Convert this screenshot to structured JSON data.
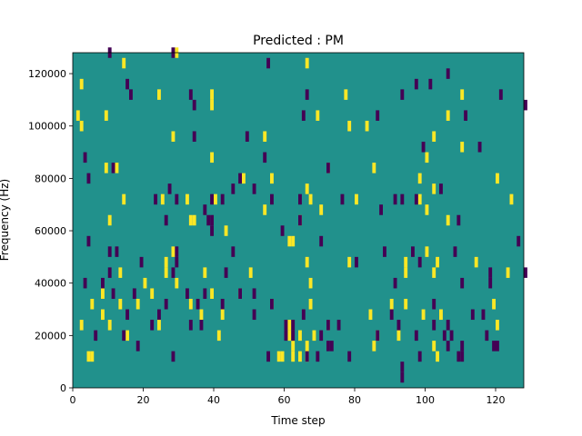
{
  "chart_data": {
    "type": "heatmap",
    "title": "Predicted : PM",
    "xlabel": "Time step",
    "ylabel": "Frequency (Hz)",
    "xlim": [
      0,
      128
    ],
    "ylim": [
      0,
      128000
    ],
    "x_ticks": [
      0,
      20,
      40,
      60,
      80,
      100,
      120
    ],
    "y_ticks": [
      0,
      20000,
      40000,
      60000,
      80000,
      100000,
      120000
    ],
    "y_tick_labels": [
      "0",
      "20000",
      "40000",
      "60000",
      "80000",
      "100000",
      "120000"
    ],
    "grid": false,
    "colormap": "viridis",
    "colors": {
      "background": "#21918c",
      "high": "#fde725",
      "low": "#440154"
    },
    "cell_width_x": 1,
    "cell_height_hz": 4000,
    "high_cells": [
      [
        29,
        126000
      ],
      [
        14,
        122000
      ],
      [
        66,
        122000
      ],
      [
        2,
        114000
      ],
      [
        24,
        110000
      ],
      [
        39,
        110000
      ],
      [
        77,
        110000
      ],
      [
        110,
        110000
      ],
      [
        39,
        106000
      ],
      [
        1,
        102000
      ],
      [
        9,
        102000
      ],
      [
        69,
        102000
      ],
      [
        106,
        102000
      ],
      [
        2,
        98000
      ],
      [
        78,
        98000
      ],
      [
        83,
        98000
      ],
      [
        28,
        94000
      ],
      [
        54,
        94000
      ],
      [
        102,
        94000
      ],
      [
        110,
        90000
      ],
      [
        39,
        86000
      ],
      [
        100,
        86000
      ],
      [
        9,
        82000
      ],
      [
        12,
        82000
      ],
      [
        72,
        82000
      ],
      [
        85,
        82000
      ],
      [
        48,
        78000
      ],
      [
        56,
        78000
      ],
      [
        98,
        78000
      ],
      [
        120,
        78000
      ],
      [
        66,
        74000
      ],
      [
        102,
        74000
      ],
      [
        14,
        70000
      ],
      [
        25,
        70000
      ],
      [
        32,
        70000
      ],
      [
        40,
        70000
      ],
      [
        67,
        70000
      ],
      [
        80,
        70000
      ],
      [
        98,
        70000
      ],
      [
        124,
        70000
      ],
      [
        54,
        66000
      ],
      [
        70,
        66000
      ],
      [
        100,
        66000
      ],
      [
        10,
        62000
      ],
      [
        33,
        62000
      ],
      [
        34,
        62000
      ],
      [
        64,
        62000
      ],
      [
        106,
        62000
      ],
      [
        43,
        58000
      ],
      [
        61,
        54000
      ],
      [
        62,
        54000
      ],
      [
        28,
        50000
      ],
      [
        100,
        50000
      ],
      [
        26,
        46000
      ],
      [
        66,
        46000
      ],
      [
        78,
        46000
      ],
      [
        94,
        46000
      ],
      [
        103,
        46000
      ],
      [
        114,
        46000
      ],
      [
        13,
        42000
      ],
      [
        26,
        42000
      ],
      [
        37,
        42000
      ],
      [
        50,
        42000
      ],
      [
        94,
        42000
      ],
      [
        102,
        42000
      ],
      [
        123,
        42000
      ],
      [
        20,
        38000
      ],
      [
        29,
        38000
      ],
      [
        67,
        38000
      ],
      [
        8,
        34000
      ],
      [
        22,
        34000
      ],
      [
        39,
        34000
      ],
      [
        47,
        34000
      ],
      [
        5,
        30000
      ],
      [
        13,
        30000
      ],
      [
        18,
        30000
      ],
      [
        33,
        30000
      ],
      [
        56,
        30000
      ],
      [
        67,
        30000
      ],
      [
        90,
        30000
      ],
      [
        94,
        30000
      ],
      [
        119,
        30000
      ],
      [
        8,
        26000
      ],
      [
        36,
        26000
      ],
      [
        42,
        26000
      ],
      [
        84,
        26000
      ],
      [
        99,
        26000
      ],
      [
        104,
        26000
      ],
      [
        2,
        22000
      ],
      [
        10,
        22000
      ],
      [
        24,
        22000
      ],
      [
        60,
        22000
      ],
      [
        61,
        22000
      ],
      [
        72,
        22000
      ],
      [
        120,
        22000
      ],
      [
        15,
        18000
      ],
      [
        41,
        18000
      ],
      [
        61,
        18000
      ],
      [
        64,
        18000
      ],
      [
        68,
        18000
      ],
      [
        86,
        18000
      ],
      [
        92,
        18000
      ],
      [
        62,
        14000
      ],
      [
        66,
        14000
      ],
      [
        85,
        14000
      ],
      [
        102,
        14000
      ],
      [
        4,
        10000
      ],
      [
        5,
        10000
      ],
      [
        58,
        10000
      ],
      [
        59,
        10000
      ],
      [
        62,
        10000
      ],
      [
        64,
        10000
      ],
      [
        66,
        10000
      ],
      [
        103,
        10000
      ]
    ],
    "low_cells": [
      [
        10,
        126000
      ],
      [
        28,
        126000
      ],
      [
        55,
        122000
      ],
      [
        106,
        118000
      ],
      [
        15,
        114000
      ],
      [
        97,
        114000
      ],
      [
        101,
        114000
      ],
      [
        16,
        110000
      ],
      [
        33,
        110000
      ],
      [
        66,
        110000
      ],
      [
        93,
        110000
      ],
      [
        121,
        110000
      ],
      [
        34,
        106000
      ],
      [
        128,
        106000
      ],
      [
        65,
        102000
      ],
      [
        86,
        102000
      ],
      [
        111,
        102000
      ],
      [
        34,
        94000
      ],
      [
        49,
        94000
      ],
      [
        99,
        90000
      ],
      [
        115,
        90000
      ],
      [
        3,
        86000
      ],
      [
        54,
        86000
      ],
      [
        11,
        82000
      ],
      [
        72,
        82000
      ],
      [
        4,
        78000
      ],
      [
        47,
        78000
      ],
      [
        27,
        74000
      ],
      [
        45,
        74000
      ],
      [
        51,
        74000
      ],
      [
        104,
        74000
      ],
      [
        23,
        70000
      ],
      [
        29,
        70000
      ],
      [
        39,
        70000
      ],
      [
        42,
        70000
      ],
      [
        56,
        70000
      ],
      [
        64,
        70000
      ],
      [
        76,
        70000
      ],
      [
        91,
        70000
      ],
      [
        93,
        70000
      ],
      [
        97,
        70000
      ],
      [
        37,
        66000
      ],
      [
        87,
        66000
      ],
      [
        26,
        62000
      ],
      [
        38,
        62000
      ],
      [
        39,
        62000
      ],
      [
        64,
        62000
      ],
      [
        109,
        62000
      ],
      [
        39,
        58000
      ],
      [
        59,
        58000
      ],
      [
        4,
        54000
      ],
      [
        70,
        54000
      ],
      [
        126,
        54000
      ],
      [
        10,
        50000
      ],
      [
        12,
        50000
      ],
      [
        29,
        50000
      ],
      [
        45,
        50000
      ],
      [
        88,
        50000
      ],
      [
        96,
        50000
      ],
      [
        108,
        50000
      ],
      [
        19,
        46000
      ],
      [
        29,
        46000
      ],
      [
        80,
        46000
      ],
      [
        98,
        46000
      ],
      [
        10,
        42000
      ],
      [
        28,
        42000
      ],
      [
        43,
        42000
      ],
      [
        118,
        42000
      ],
      [
        128,
        42000
      ],
      [
        3,
        38000
      ],
      [
        8,
        38000
      ],
      [
        91,
        38000
      ],
      [
        110,
        38000
      ],
      [
        118,
        38000
      ],
      [
        11,
        34000
      ],
      [
        17,
        34000
      ],
      [
        32,
        34000
      ],
      [
        37,
        34000
      ],
      [
        47,
        34000
      ],
      [
        51,
        34000
      ],
      [
        26,
        30000
      ],
      [
        35,
        30000
      ],
      [
        42,
        30000
      ],
      [
        56,
        30000
      ],
      [
        102,
        30000
      ],
      [
        15,
        26000
      ],
      [
        24,
        26000
      ],
      [
        51,
        26000
      ],
      [
        65,
        26000
      ],
      [
        90,
        26000
      ],
      [
        113,
        26000
      ],
      [
        116,
        26000
      ],
      [
        22,
        22000
      ],
      [
        33,
        22000
      ],
      [
        36,
        22000
      ],
      [
        60,
        22000
      ],
      [
        62,
        22000
      ],
      [
        72,
        22000
      ],
      [
        75,
        22000
      ],
      [
        92,
        22000
      ],
      [
        106,
        22000
      ],
      [
        102,
        22000
      ],
      [
        6,
        18000
      ],
      [
        14,
        18000
      ],
      [
        60,
        18000
      ],
      [
        62,
        18000
      ],
      [
        70,
        18000
      ],
      [
        86,
        18000
      ],
      [
        97,
        18000
      ],
      [
        105,
        18000
      ],
      [
        107,
        18000
      ],
      [
        117,
        18000
      ],
      [
        18,
        14000
      ],
      [
        72,
        14000
      ],
      [
        73,
        14000
      ],
      [
        106,
        14000
      ],
      [
        110,
        14000
      ],
      [
        119,
        14000
      ],
      [
        120,
        14000
      ],
      [
        28,
        10000
      ],
      [
        55,
        10000
      ],
      [
        66,
        10000
      ],
      [
        69,
        10000
      ],
      [
        78,
        10000
      ],
      [
        98,
        10000
      ],
      [
        109,
        10000
      ],
      [
        110,
        10000
      ],
      [
        93,
        6000
      ],
      [
        93,
        2000
      ]
    ]
  }
}
